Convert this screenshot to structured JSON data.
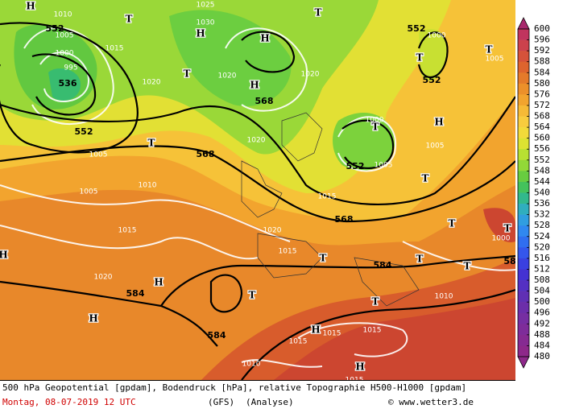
{
  "colorbar": {
    "levels": [
      600,
      596,
      592,
      588,
      584,
      580,
      576,
      572,
      568,
      564,
      560,
      556,
      552,
      548,
      544,
      540,
      536,
      532,
      528,
      524,
      520,
      516,
      512,
      508,
      504,
      500,
      496,
      492,
      488,
      484,
      480
    ],
    "colors": [
      "#a8286c",
      "#c0345e",
      "#cc424c",
      "#d6523a",
      "#de642e",
      "#e47a2a",
      "#ec902a",
      "#f2a42e",
      "#f6ba36",
      "#f8cc3e",
      "#f2da3a",
      "#dce232",
      "#b8e032",
      "#92d838",
      "#68cc40",
      "#44c25c",
      "#32b88c",
      "#30aebe",
      "#309ee0",
      "#3088f0",
      "#306ef0",
      "#3456ec",
      "#3a40e0",
      "#4432d2",
      "#5430c2",
      "#6030b4",
      "#6c2eaa",
      "#762ea2",
      "#7e2c9a",
      "#862a92",
      "#8e288a"
    ]
  },
  "map": {
    "labels": [
      "H",
      "1010",
      "T",
      "1025",
      "1030",
      "H",
      "H",
      "T",
      "552",
      "1005",
      "1000",
      "995",
      "536",
      "1015",
      "1020",
      "T",
      "1020",
      "H",
      "568",
      "1020",
      "552",
      "1000",
      "T",
      "552",
      "T",
      "1005",
      "552",
      "T",
      "568",
      "1005",
      "1020",
      "1000",
      "T",
      "552",
      "1005",
      "H",
      "1005",
      "T",
      "1010",
      "1005",
      "1015",
      "568",
      "T",
      "1000",
      "T",
      "1015",
      "1020",
      "1015",
      "T",
      "584",
      "T",
      "T",
      "H",
      "1020",
      "H",
      "584",
      "T",
      "1010",
      "T",
      "H",
      "584",
      "H",
      "1015",
      "1015",
      "1015",
      "H",
      "1010",
      "1015",
      "58"
    ]
  },
  "footer": {
    "line1": "500 hPa Geopotential [gpdam], Bodendruck [hPa], relative Topographie H500-H1000 [gpdam]",
    "date": "Montag, 08-07-2019  12 UTC",
    "model": "(GFS)",
    "run": "(Analyse)",
    "credit": "© www.wetter3.de"
  }
}
